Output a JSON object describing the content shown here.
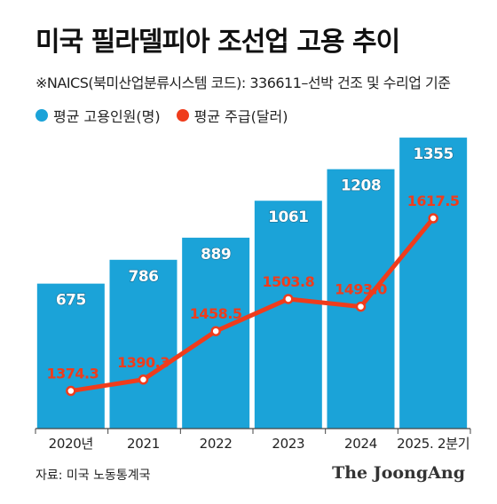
{
  "title": "미국 필라델피아 조선업 고용 추이",
  "note": "※NAICS(북미산업분류시스템 코드): 336611–선박 건조 및 수리업 기준",
  "source": "자료: 미국 노동통계국",
  "brand": "The JoongAng",
  "colors": {
    "bar": "#1ba3d8",
    "line": "#ef3c1c",
    "axis": "#444444",
    "guide": "#999999"
  },
  "chart_data": {
    "type": "bar",
    "categories": [
      "2020년",
      "2021",
      "2022",
      "2023",
      "2024",
      "2025. 2분기"
    ],
    "series": [
      {
        "name": "평균 고용인원(명)",
        "type": "bar",
        "values": [
          675,
          786,
          889,
          1061,
          1208,
          1355
        ],
        "labels": [
          "675",
          "786",
          "889",
          "1061",
          "1208",
          "1355"
        ]
      },
      {
        "name": "평균 주급(달러)",
        "type": "line",
        "values": [
          1374.3,
          1390.3,
          1458.5,
          1503.8,
          1493.0,
          1617.5
        ],
        "labels": [
          "1374.3",
          "1390.3",
          "1458.5",
          "1503.8",
          "1493.0",
          "1617.5"
        ]
      }
    ],
    "ylim_bar": [
      0,
      1500
    ],
    "ylim_line": [
      1200,
      1700
    ],
    "legend_position": "top-left",
    "grid": false
  }
}
